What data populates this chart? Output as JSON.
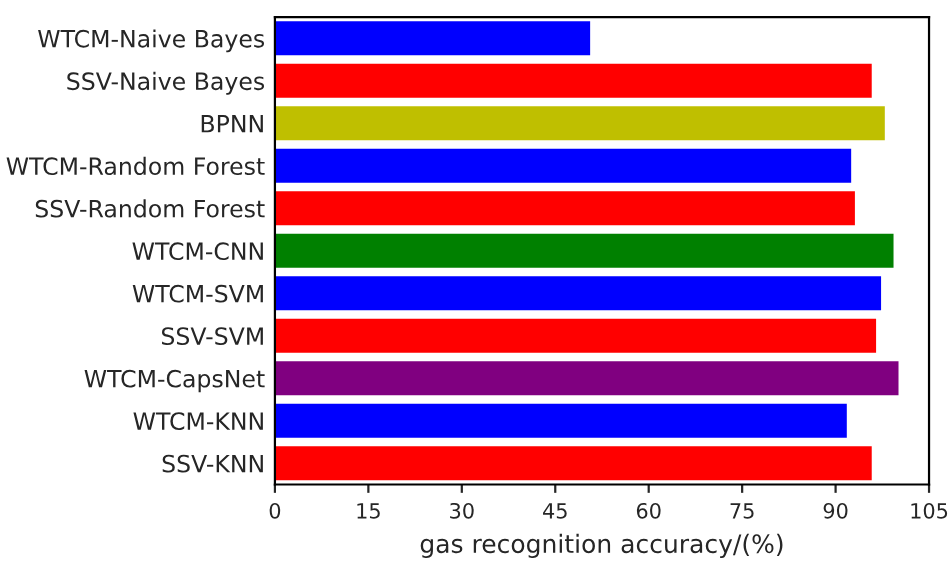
{
  "chart_data": {
    "type": "bar",
    "orientation": "horizontal",
    "xlabel": "gas recognition accuracy/(%)",
    "categories": [
      "WTCM-Naive Bayes",
      "SSV-Naive Bayes",
      "BPNN",
      "WTCM-Random Forest",
      "SSV-Random Forest",
      "WTCM-CNN",
      "WTCM-SVM",
      "SSV-SVM",
      "WTCM-CapsNet",
      "WTCM-KNN",
      "SSV-KNN"
    ],
    "values": [
      50.6,
      95.8,
      97.9,
      92.5,
      93.1,
      99.3,
      97.3,
      96.5,
      100.1,
      91.8,
      95.8
    ],
    "colors": [
      "#0000ff",
      "#ff0000",
      "#bfbf00",
      "#0000ff",
      "#ff0000",
      "#008000",
      "#0000ff",
      "#ff0000",
      "#800080",
      "#0000ff",
      "#ff0000"
    ],
    "xlim": [
      0,
      105
    ],
    "xticks": [
      0,
      15,
      30,
      45,
      60,
      75,
      90,
      105
    ],
    "grid": false,
    "legend": false
  }
}
